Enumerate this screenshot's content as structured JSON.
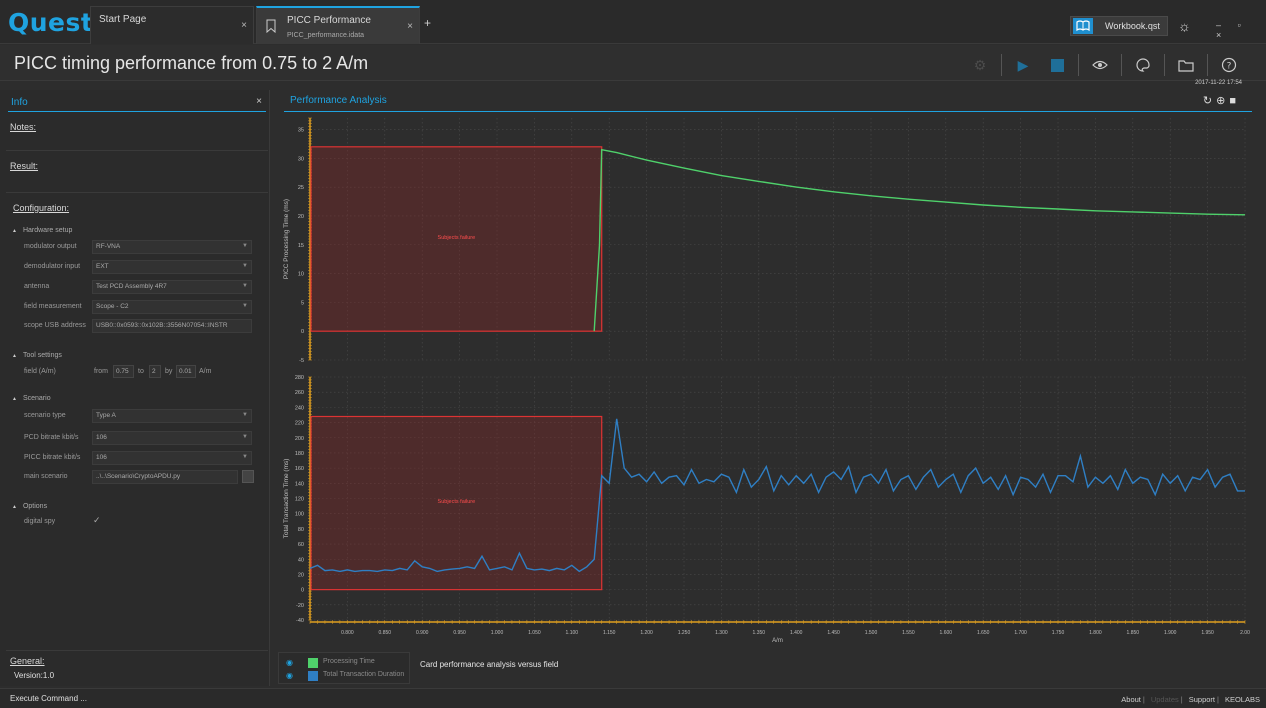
{
  "app": {
    "logo": "Quest"
  },
  "tabs": [
    {
      "title": "Start Page",
      "subtitle": ""
    },
    {
      "title": "PICC Performance",
      "subtitle": "PICC_performance.idata"
    }
  ],
  "tab_add": "+",
  "tab_close": "×",
  "workbook": {
    "label": "Workbook.qst"
  },
  "window_controls": "– ▫ ×",
  "page": {
    "title": "PICC timing performance from 0.75 to 2 A/m"
  },
  "info_panel": {
    "heading": "Info",
    "close": "×",
    "notes_label": "Notes:",
    "result_label": "Result:",
    "configuration_label": "Configuration:",
    "hardware": {
      "heading": "Hardware setup",
      "rows": [
        {
          "label": "modulator output",
          "value": "RF-VNA"
        },
        {
          "label": "demodulator input",
          "value": "EXT"
        },
        {
          "label": "antenna",
          "value": "Test PCD Assembly 4R7"
        },
        {
          "label": "field measurement",
          "value": "Scope - C2"
        },
        {
          "label": "scope USB address",
          "value": "USB0::0x0593::0x102B::3556N07054::INSTR"
        }
      ]
    },
    "tool_settings": {
      "heading": "Tool settings",
      "field_label": "field (A/m)",
      "from_label": "from",
      "from_value": "0.75",
      "to_label": "to",
      "to_value": "2",
      "by_label": "by",
      "by_value": "0.01",
      "unit": "A/m"
    },
    "scenario": {
      "heading": "Scenario",
      "rows": [
        {
          "label": "scenario type",
          "value": "Type A"
        },
        {
          "label": "PCD bitrate kbit/s",
          "value": "106"
        },
        {
          "label": "PICC bitrate kbit/s",
          "value": "106"
        },
        {
          "label": "main scenario",
          "value": "..\\..\\Scenario\\CryptoAPDU.py"
        }
      ]
    },
    "options": {
      "heading": "Options",
      "digital_spy_label": "digital spy",
      "digital_spy_checked": "✓"
    },
    "general_label": "General:",
    "version": "Version:1.0"
  },
  "analysis_panel": {
    "heading": "Performance Analysis",
    "timestamp": "2017-11-22 17:54",
    "legend": [
      {
        "label": "Processing Time",
        "color": "#4fd16b"
      },
      {
        "label": "Total Transaction Duration",
        "color": "#2f7fc4"
      }
    ],
    "caption": "Card performance analysis versus field"
  },
  "chart_data": [
    {
      "type": "line",
      "title": "",
      "xlabel": "",
      "ylabel": "PICC Processing Time (ms)",
      "xlim": [
        0.75,
        2.0
      ],
      "ylim": [
        -5,
        37
      ],
      "yticks": [
        -5,
        0,
        5,
        10,
        15,
        20,
        25,
        30,
        35
      ],
      "grid": true,
      "annotations": [
        {
          "text": "Subjects failure",
          "region_x": [
            0.75,
            1.14
          ],
          "region_y": [
            0,
            32
          ]
        }
      ],
      "series": [
        {
          "name": "Processing Time",
          "color": "#4fd16b",
          "x": [
            1.13,
            1.137,
            1.14,
            1.16,
            1.2,
            1.25,
            1.3,
            1.35,
            1.4,
            1.45,
            1.5,
            1.55,
            1.6,
            1.65,
            1.7,
            1.75,
            1.8,
            1.85,
            1.9,
            1.95,
            2.0
          ],
          "y": [
            0,
            15,
            31.5,
            31.0,
            29.7,
            28.3,
            27.0,
            26.0,
            25.0,
            24.2,
            23.5,
            22.9,
            22.4,
            21.9,
            21.5,
            21.2,
            20.9,
            20.7,
            20.5,
            20.3,
            20.2
          ]
        }
      ]
    },
    {
      "type": "line",
      "title": "",
      "xlabel": "A/m",
      "ylabel": "Total Transaction Time (ms)",
      "xlim": [
        0.75,
        2.0
      ],
      "ylim": [
        -40,
        280
      ],
      "yticks": [
        -40,
        -20,
        0,
        20,
        40,
        60,
        80,
        100,
        120,
        140,
        160,
        180,
        200,
        220,
        240,
        260,
        280
      ],
      "xticks": [
        "0.800",
        "0.850",
        "0.900",
        "0.950",
        "1.000",
        "1.050",
        "1.100",
        "1.150",
        "1.200",
        "1.250",
        "1.300",
        "1.350",
        "1.400",
        "1.450",
        "1.500",
        "1.550",
        "1.600",
        "1.650",
        "1.700",
        "1.750",
        "1.800",
        "1.850",
        "1.900",
        "1.950",
        "2.00"
      ],
      "grid": true,
      "annotations": [
        {
          "text": "Subjects failure",
          "region_x": [
            0.75,
            1.14
          ],
          "region_y": [
            0,
            228
          ]
        }
      ],
      "series": [
        {
          "name": "Total Transaction Duration",
          "color": "#2f7fc4",
          "x": [
            0.75,
            0.76,
            0.77,
            0.78,
            0.79,
            0.8,
            0.81,
            0.82,
            0.83,
            0.84,
            0.85,
            0.86,
            0.87,
            0.88,
            0.89,
            0.9,
            0.91,
            0.92,
            0.93,
            0.94,
            0.95,
            0.96,
            0.97,
            0.98,
            0.99,
            1.0,
            1.01,
            1.02,
            1.03,
            1.04,
            1.05,
            1.06,
            1.07,
            1.08,
            1.09,
            1.1,
            1.11,
            1.12,
            1.13,
            1.14,
            1.15,
            1.16,
            1.17,
            1.18,
            1.19,
            1.2,
            1.21,
            1.22,
            1.23,
            1.24,
            1.25,
            1.26,
            1.27,
            1.28,
            1.29,
            1.3,
            1.31,
            1.32,
            1.33,
            1.34,
            1.35,
            1.36,
            1.37,
            1.38,
            1.39,
            1.4,
            1.41,
            1.42,
            1.43,
            1.44,
            1.45,
            1.46,
            1.47,
            1.48,
            1.49,
            1.5,
            1.51,
            1.52,
            1.53,
            1.54,
            1.55,
            1.56,
            1.57,
            1.58,
            1.59,
            1.6,
            1.61,
            1.62,
            1.63,
            1.64,
            1.65,
            1.66,
            1.67,
            1.68,
            1.69,
            1.7,
            1.71,
            1.72,
            1.73,
            1.74,
            1.75,
            1.76,
            1.77,
            1.78,
            1.79,
            1.8,
            1.81,
            1.82,
            1.83,
            1.84,
            1.85,
            1.86,
            1.87,
            1.88,
            1.89,
            1.9,
            1.91,
            1.92,
            1.93,
            1.94,
            1.95,
            1.96,
            1.97,
            1.98,
            1.99,
            2.0
          ],
          "y": [
            28,
            32,
            25,
            26,
            24,
            26,
            24,
            25,
            25,
            24,
            26,
            25,
            28,
            26,
            38,
            30,
            28,
            24,
            26,
            27,
            28,
            30,
            28,
            44,
            26,
            28,
            30,
            26,
            48,
            28,
            26,
            27,
            25,
            28,
            26,
            32,
            24,
            30,
            40,
            150,
            140,
            225,
            160,
            148,
            152,
            142,
            155,
            140,
            148,
            150,
            138,
            158,
            140,
            145,
            142,
            152,
            148,
            128,
            158,
            135,
            145,
            162,
            130,
            150,
            138,
            150,
            140,
            152,
            128,
            148,
            155,
            145,
            162,
            128,
            148,
            152,
            140,
            158,
            130,
            145,
            150,
            132,
            148,
            158,
            135,
            145,
            152,
            128,
            150,
            160,
            140,
            148,
            132,
            150,
            125,
            148,
            145,
            135,
            152,
            128,
            150,
            150,
            142,
            176,
            135,
            148,
            140,
            150,
            132,
            158,
            140,
            148,
            145,
            125,
            152,
            140,
            150,
            130,
            148,
            145,
            158,
            135,
            148,
            152,
            130,
            130
          ]
        }
      ]
    }
  ],
  "statusbar": {
    "command": "Execute Command ...",
    "about": "About",
    "updates": "Updates",
    "support": "Support",
    "brand": "KEOLABS",
    "separator": "|"
  }
}
